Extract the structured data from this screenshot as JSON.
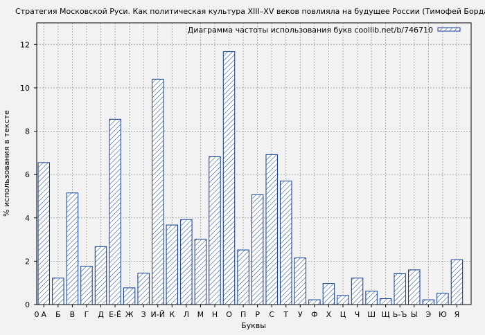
{
  "chart_data": {
    "type": "bar",
    "title": "Стратегия Московской Руси. Как политическая культура XIII–XV веков повлияла на будущее России (Тимофей Бордачев)",
    "xlabel": "Буквы",
    "ylabel": "% использования в тексте",
    "legend": {
      "label": "Диаграмма частоты использования букв coollib.net/b/746710",
      "position": "top-right"
    },
    "x_origin_label": "0",
    "categories": [
      "А",
      "Б",
      "В",
      "Г",
      "Д",
      "Е-Ё",
      "Ж",
      "З",
      "И-Й",
      "К",
      "Л",
      "М",
      "Н",
      "О",
      "П",
      "Р",
      "С",
      "Т",
      "У",
      "Ф",
      "Х",
      "Ц",
      "Ч",
      "Ш",
      "Щ",
      "Ь-Ъ",
      "Ы",
      "Э",
      "Ю",
      "Я"
    ],
    "values": [
      6.55,
      1.22,
      5.15,
      1.77,
      2.67,
      8.55,
      0.77,
      1.45,
      10.4,
      3.67,
      3.92,
      3.02,
      6.82,
      11.67,
      2.52,
      5.07,
      6.92,
      5.7,
      2.15,
      0.22,
      0.97,
      0.42,
      1.22,
      0.62,
      0.27,
      1.42,
      1.6,
      0.22,
      0.52,
      2.07
    ],
    "yticks": [
      0,
      2,
      4,
      6,
      8,
      10,
      12
    ],
    "ylim": [
      0,
      13
    ],
    "grid": true,
    "colors": {
      "bar_stroke": "#0d3a8c",
      "hatch": "#0d3a8c",
      "bar_fill": "#ffffff",
      "background": "#f2f2f2",
      "grid": "#999999"
    }
  }
}
